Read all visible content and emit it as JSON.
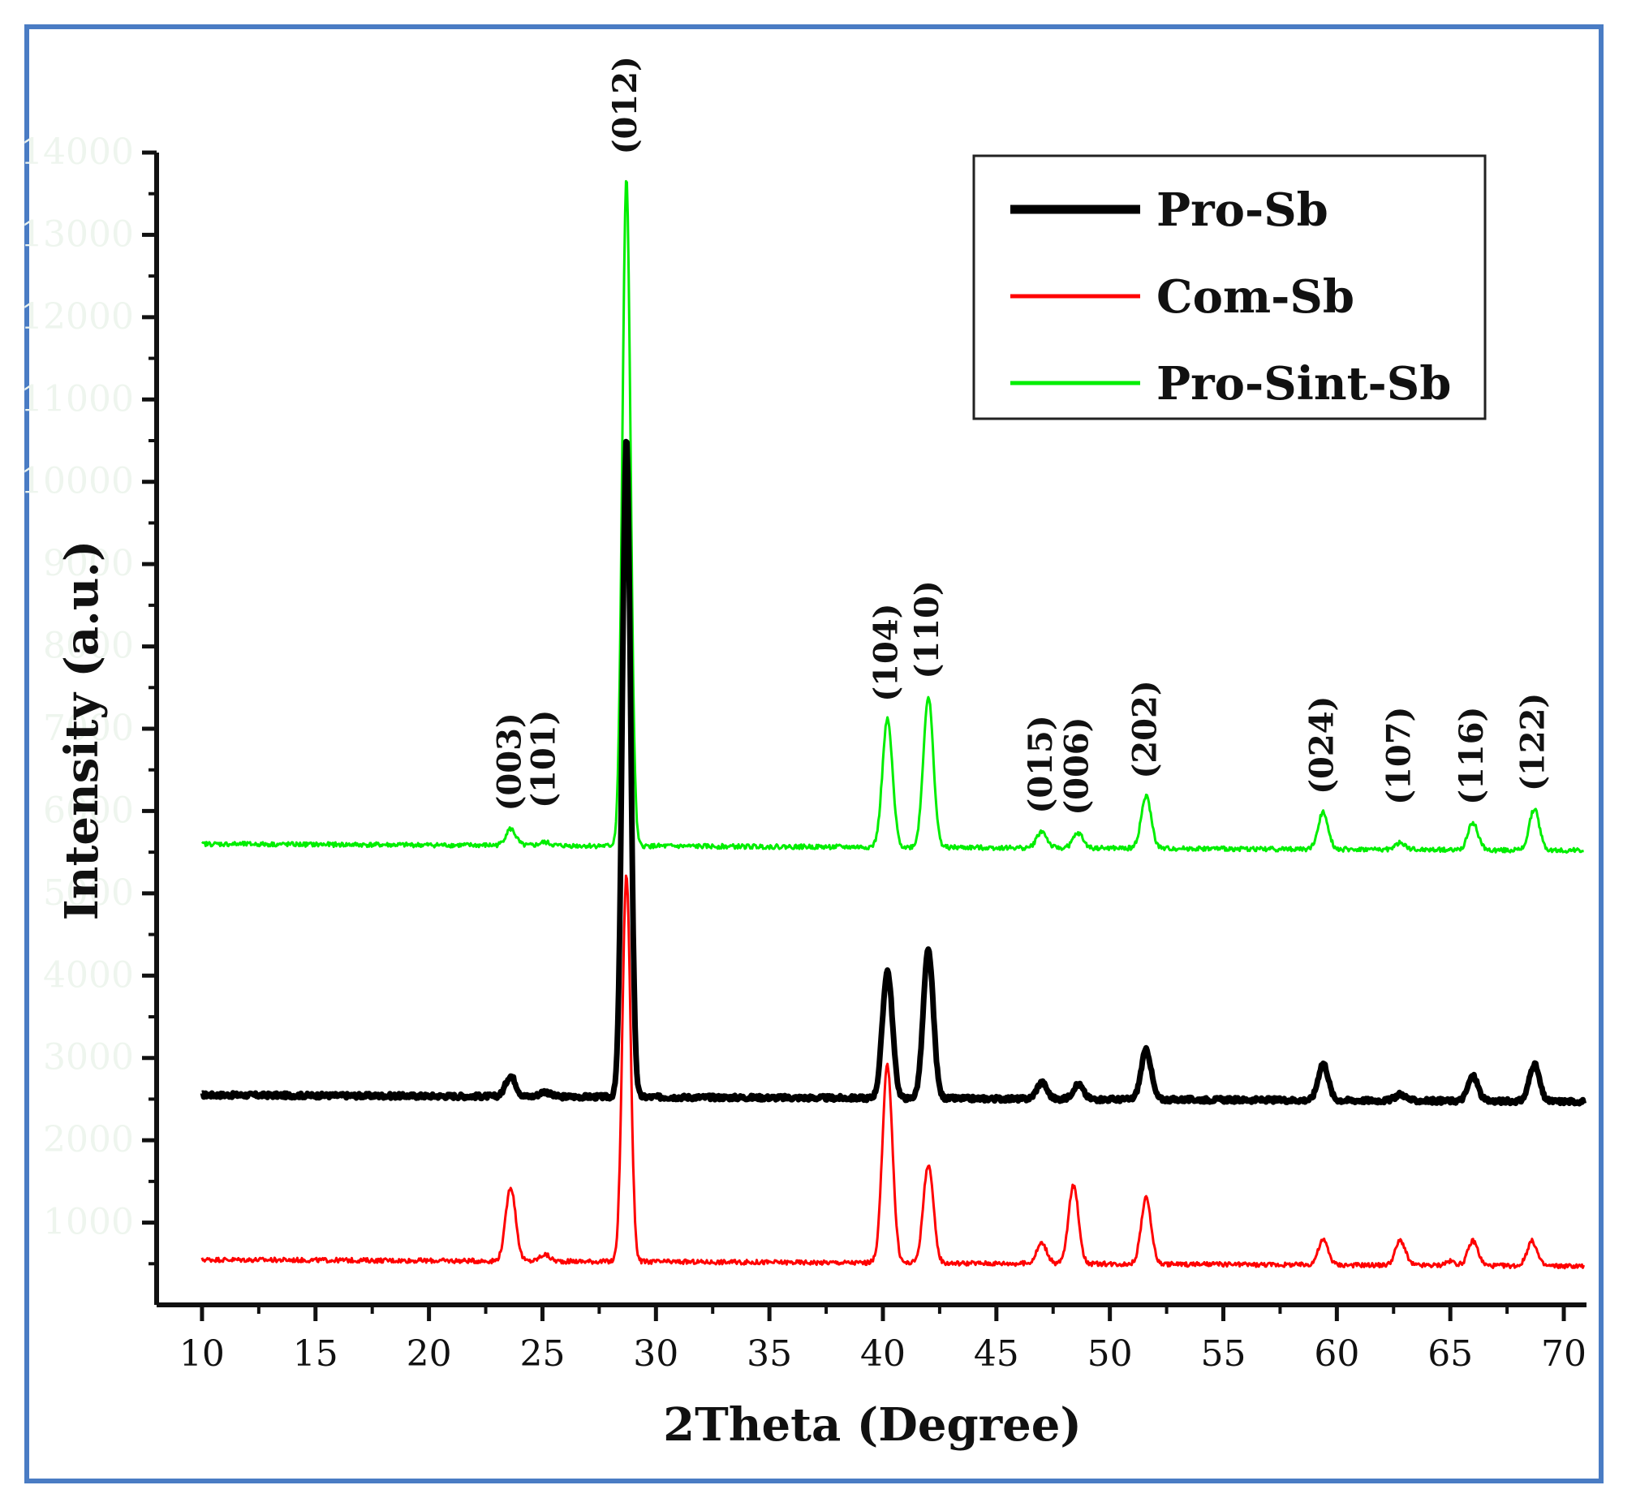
{
  "chart_data": {
    "type": "line",
    "xlabel": "2Theta (Degree)",
    "ylabel": "Intensity (a.u.)",
    "xlim": [
      8,
      71
    ],
    "ylim": [
      0,
      14000
    ],
    "x_ticks": [
      10,
      15,
      20,
      25,
      30,
      35,
      40,
      45,
      50,
      55,
      60,
      65,
      70
    ],
    "y_tick_labels": [
      "1000",
      "2000",
      "3000",
      "4000",
      "5000",
      "6000",
      "7000",
      "8000",
      "9000",
      "10000",
      "11000",
      "12000",
      "13000",
      "14000"
    ],
    "legend_position": "top-right",
    "series": [
      {
        "name": "Pro-Sb",
        "color": "#000000",
        "baseline": 2550,
        "peaks": [
          [
            23.6,
            250
          ],
          [
            25.1,
            60
          ],
          [
            28.7,
            8000
          ],
          [
            40.2,
            1550
          ],
          [
            42.0,
            1800
          ],
          [
            47.0,
            200
          ],
          [
            48.6,
            180
          ],
          [
            51.6,
            600
          ],
          [
            59.4,
            450
          ],
          [
            62.8,
            80
          ],
          [
            66.0,
            300
          ],
          [
            68.7,
            450
          ]
        ]
      },
      {
        "name": "Com-Sb",
        "color": "#ff0000",
        "baseline": 550,
        "peaks": [
          [
            23.6,
            900
          ],
          [
            25.1,
            80
          ],
          [
            28.7,
            4700
          ],
          [
            40.2,
            2400
          ],
          [
            42.0,
            1200
          ],
          [
            47.0,
            250
          ],
          [
            48.4,
            950
          ],
          [
            51.6,
            800
          ],
          [
            59.4,
            300
          ],
          [
            62.8,
            300
          ],
          [
            65.0,
            50
          ],
          [
            66.0,
            300
          ],
          [
            68.6,
            300
          ]
        ]
      },
      {
        "name": "Pro-Sint-Sb",
        "color": "#00ee00",
        "baseline": 5600,
        "peaks": [
          [
            23.6,
            200
          ],
          [
            25.1,
            40
          ],
          [
            28.7,
            8100
          ],
          [
            40.2,
            1550
          ],
          [
            42.0,
            1830
          ],
          [
            47.0,
            200
          ],
          [
            48.6,
            180
          ],
          [
            51.6,
            630
          ],
          [
            59.4,
            450
          ],
          [
            62.8,
            80
          ],
          [
            66.0,
            330
          ],
          [
            68.7,
            500
          ]
        ]
      }
    ],
    "annotations": [
      {
        "text": "(003)",
        "x": 23.6
      },
      {
        "text": "(101)",
        "x": 25.1
      },
      {
        "text": "(012)",
        "x": 28.7
      },
      {
        "text": "(104)",
        "x": 40.2
      },
      {
        "text": "(110)",
        "x": 42.0
      },
      {
        "text": "(015)",
        "x": 47.0
      },
      {
        "text": "(006)",
        "x": 48.6
      },
      {
        "text": "(202)",
        "x": 51.6
      },
      {
        "text": "(024)",
        "x": 59.4
      },
      {
        "text": "(107)",
        "x": 62.8
      },
      {
        "text": "(116)",
        "x": 66.0
      },
      {
        "text": "(122)",
        "x": 68.7
      }
    ]
  }
}
